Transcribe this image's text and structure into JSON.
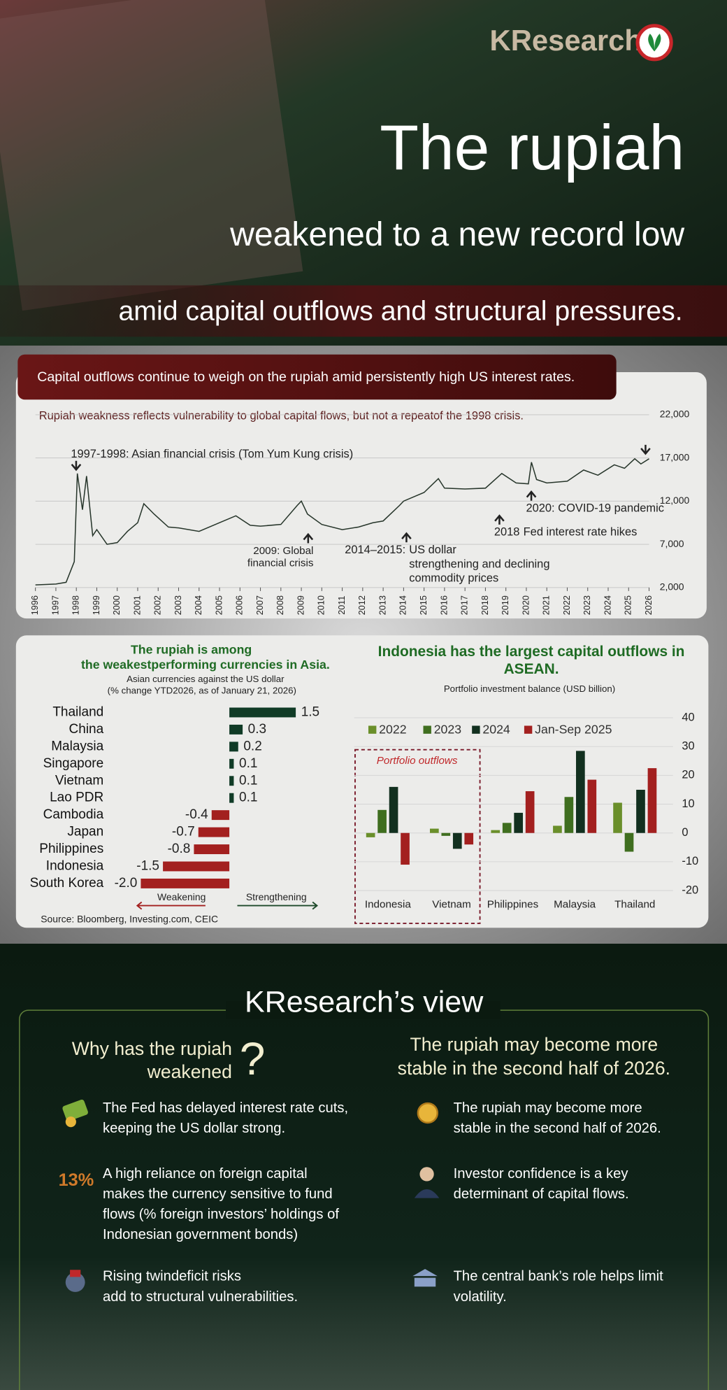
{
  "logo": "KResearch",
  "header": {
    "title": "The rupiah",
    "subtitle": "weakened to a new record low",
    "banner": "amid capital outflows and structural pressures."
  },
  "chart_data": [
    {
      "type": "line",
      "banner": "Capital outflows continue to weigh on the rupiah amid persistently high US interest rates.",
      "subtitle": "Rupiah weakness reflects vulnerability to global capital flows, but not a repeatof the 1998 crisis.",
      "x": [
        1996,
        1997,
        1997.5,
        1997.9,
        1998.05,
        1998.3,
        1998.5,
        1998.8,
        1999,
        1999.5,
        2000,
        2000.5,
        2001,
        2001.3,
        2001.8,
        2002.5,
        2003,
        2004,
        2005,
        2005.8,
        2006.5,
        2007,
        2008,
        2008.8,
        2009,
        2009.3,
        2010,
        2011,
        2011.8,
        2012.5,
        2013,
        2013.8,
        2014,
        2015,
        2015.7,
        2016,
        2017,
        2018,
        2018.8,
        2019.5,
        2020.1,
        2020.25,
        2020.5,
        2021,
        2022,
        2022.8,
        2023.5,
        2024.3,
        2024.8,
        2025.3,
        2025.6,
        2026
      ],
      "values": [
        2300,
        2400,
        2600,
        5000,
        15200,
        11000,
        14900,
        8000,
        8700,
        7000,
        7200,
        8500,
        9500,
        11700,
        10500,
        9000,
        8900,
        8500,
        9500,
        10300,
        9200,
        9100,
        9300,
        11500,
        12000,
        10500,
        9300,
        8700,
        9000,
        9500,
        9700,
        11500,
        12000,
        13000,
        14600,
        13500,
        13400,
        13500,
        15200,
        14100,
        14000,
        16500,
        14500,
        14100,
        14300,
        15600,
        15000,
        16200,
        15800,
        16900,
        16300,
        16900
      ],
      "color": "#26352a",
      "xlim": [
        1996,
        2026
      ],
      "xticks": [
        1996,
        1997,
        1998,
        1999,
        2000,
        2001,
        2002,
        2003,
        2004,
        2005,
        2006,
        2007,
        2008,
        2009,
        2010,
        2011,
        2012,
        2013,
        2014,
        2015,
        2016,
        2017,
        2018,
        2019,
        2020,
        2021,
        2022,
        2023,
        2024,
        2025,
        2026
      ],
      "ylim": [
        2000,
        22000
      ],
      "yticks": [
        {
          "value": 2000,
          "label": "2,000"
        },
        {
          "value": 7000,
          "label": "7,000"
        },
        {
          "value": 12000,
          "label": "12,000"
        },
        {
          "value": 17000,
          "label": "17,000"
        },
        {
          "value": 22000,
          "label": "22,000"
        }
      ],
      "grid": true,
      "annotations": [
        "1997-1998: Asian financial crisis (Tom Yum Kung crisis)",
        [
          "2009: Global",
          "financial crisis"
        ],
        [
          "2014–2015:",
          "US dollar",
          "strengthening and declining",
          "commodity prices"
        ],
        [
          "2018",
          "Fed interest rate hikes"
        ],
        "2020: COVID-19 pandemic"
      ]
    },
    {
      "type": "barh",
      "title": [
        "The rupiah is among",
        "the weakestperforming currencies in Asia."
      ],
      "subtitle": [
        "Asian currencies against the US dollar",
        "(% change YTD2026, as of January 21, 2026)"
      ],
      "categories": [
        "Thailand",
        "China",
        "Malaysia",
        "Singapore",
        "Vietnam",
        "Lao PDR",
        "Cambodia",
        "Japan",
        "Philippines",
        "Indonesia",
        "South Korea"
      ],
      "values": [
        1.5,
        0.3,
        0.2,
        0.1,
        0.1,
        0.1,
        -0.4,
        -0.7,
        -0.8,
        -1.5,
        -2.0
      ],
      "value_labels": [
        "1.5",
        "0.3",
        "0.2",
        "0.1",
        "0.1",
        "0.1",
        "-0.4",
        "-0.7",
        "-0.8",
        "-1.5",
        "-2.0"
      ],
      "colors": {
        "positive": "#103b26",
        "negative": "#a3201f"
      },
      "axis_labels": {
        "negative": "Weakening",
        "positive": "Strengthening"
      },
      "source": "Source: Bloomberg, Investing.com, CEIC"
    },
    {
      "type": "bar",
      "title": [
        "Indonesia has the largest capital outflows in",
        "ASEAN."
      ],
      "subtitle": "Portfolio investment balance (USD billion)",
      "categories": [
        "Indonesia",
        "Vietnam",
        "Philippines",
        "Malaysia",
        "Thailand"
      ],
      "series": [
        {
          "name": "2022",
          "color": "#6a8f2a",
          "values": [
            -1.5,
            1.5,
            1,
            2.5,
            10.5
          ]
        },
        {
          "name": "2023",
          "color": "#3f6e1f",
          "values": [
            8,
            -1,
            3.5,
            12.5,
            -6.5
          ]
        },
        {
          "name": "2024",
          "color": "#12301f",
          "values": [
            16,
            -5.5,
            7,
            28.5,
            15
          ]
        },
        {
          "name": "Jan-Sep 2025",
          "color": "#a3201f",
          "values": [
            -11,
            -4,
            14.5,
            18.5,
            22.5
          ]
        }
      ],
      "ylim": [
        -20,
        40
      ],
      "yticks": [
        -20,
        -10,
        0,
        10,
        20,
        30,
        40
      ],
      "grid": true,
      "annotation": "Portfolio outflows"
    }
  ],
  "view": {
    "title": "KResearch’s view",
    "left": {
      "heading": [
        "Why has the rupiah",
        "weakened"
      ],
      "mark": "?",
      "items": [
        {
          "lines": [
            "The Fed has delayed interest rate cuts,",
            "keeping the US dollar strong."
          ]
        },
        {
          "icon_label": "13%",
          "lines": [
            "A high reliance on foreign capital",
            "makes the currency sensitive to fund",
            "flows (% foreign investors’ holdings of",
            "Indonesian government bonds)"
          ]
        },
        {
          "lines": [
            "Rising twindeficit risks",
            "add to structural vulnerabilities."
          ]
        }
      ]
    },
    "right": {
      "heading": [
        "The rupiah may become more",
        "stable in the second half of 2026."
      ],
      "items": [
        {
          "lines": [
            "The rupiah may become more",
            "stable in the second half of 2026."
          ]
        },
        {
          "lines": [
            "Investor confidence is a key",
            "determinant of capital flows."
          ]
        },
        {
          "lines": [
            "The central bank’s role helps limit",
            "volatility."
          ]
        }
      ]
    }
  }
}
